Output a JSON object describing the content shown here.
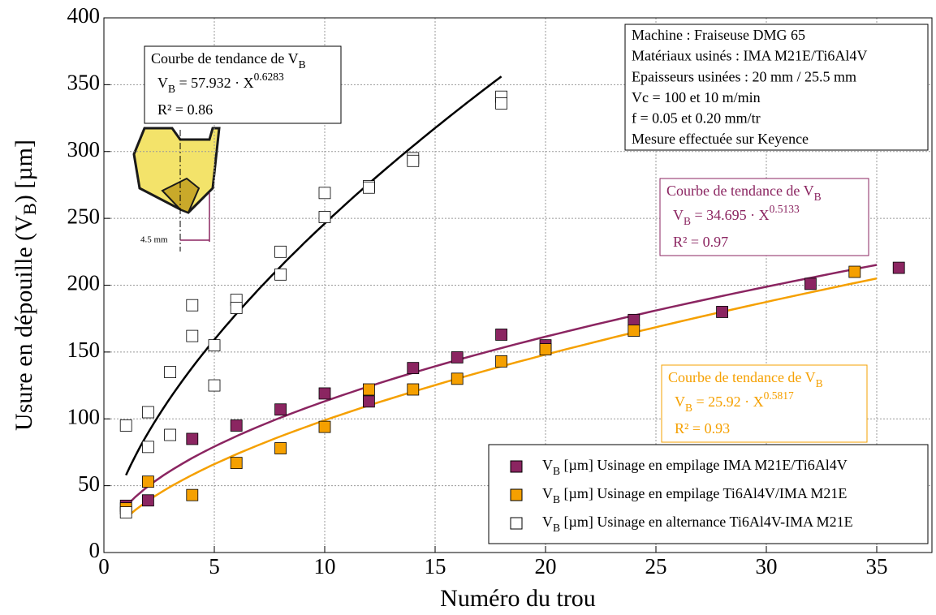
{
  "chart_data": {
    "type": "scatter",
    "xlabel": "Numéro du trou",
    "ylabel": [
      "Usure en dépouille (V",
      "B",
      ") [µm]"
    ],
    "xlim": [
      0,
      37.5
    ],
    "ylim": [
      0,
      400
    ],
    "xticks": [
      0,
      5,
      10,
      15,
      20,
      25,
      30,
      35
    ],
    "yticks": [
      0,
      50,
      100,
      150,
      200,
      250,
      300,
      350,
      400
    ],
    "grid": true,
    "legend_position": "lower right",
    "legend_symbol": [
      "V",
      "B"
    ],
    "series": [
      {
        "name": " [µm] Usinage en empilage IMA M21E/Ti6Al4V",
        "color": "#8b2561",
        "filled": true,
        "x": [
          1,
          2,
          4,
          6,
          8,
          10,
          12,
          14,
          16,
          18,
          20,
          24,
          28,
          32,
          36
        ],
        "values": [
          35,
          39,
          85,
          95,
          107,
          119,
          113,
          138,
          146,
          163,
          155,
          174,
          180,
          201,
          213
        ]
      },
      {
        "name": " [µm] Usinage en empilage Ti6Al4V/IMA M21E",
        "color": "#f5a000",
        "filled": true,
        "x": [
          1,
          2,
          4,
          6,
          8,
          10,
          12,
          14,
          16,
          18,
          20,
          24,
          34
        ],
        "values": [
          33,
          53,
          43,
          67,
          78,
          94,
          122,
          122,
          130,
          143,
          152,
          166,
          210
        ]
      },
      {
        "name": " [µm] Usinage en alternance Ti6Al4V-IMA M21E",
        "color": "#000000",
        "filled": false,
        "x": [
          1,
          1,
          2,
          2,
          3,
          3,
          4,
          4,
          5,
          5,
          6,
          6,
          8,
          8,
          10,
          10,
          12,
          12,
          14,
          14,
          18,
          18
        ],
        "values": [
          95,
          30,
          105,
          79,
          135,
          88,
          185,
          162,
          155,
          125,
          189,
          183,
          225,
          208,
          269,
          251,
          274,
          273,
          295,
          293,
          341,
          336
        ]
      }
    ],
    "trendlines": [
      {
        "color": "#000000",
        "xrange": [
          1,
          18
        ],
        "title": [
          "Courbe de tendance de V",
          "B"
        ],
        "eq": [
          "V",
          "B",
          " = ",
          " · X"
        ],
        "coefficient": 57.932,
        "exponent": 0.6283,
        "r2_label": "R² = ",
        "r2": 0.86
      },
      {
        "color": "#8b2561",
        "xrange": [
          1,
          35
        ],
        "title": [
          "Courbe de tendance de V",
          "B"
        ],
        "eq": [
          "V",
          "B",
          " = ",
          " · X"
        ],
        "coefficient": 34.695,
        "exponent": 0.5133,
        "r2_label": "R² = ",
        "r2": 0.97
      },
      {
        "color": "#f5a000",
        "xrange": [
          1,
          35
        ],
        "title": [
          "Courbe de tendance de V",
          "B"
        ],
        "eq": [
          "V",
          "B",
          " = ",
          " · X"
        ],
        "coefficient": 25.92,
        "exponent": 0.5817,
        "r2_label": "R² = ",
        "r2": 0.93
      }
    ],
    "info": [
      "Machine : Fraiseuse DMG 65",
      "Matériaux usinés : IMA M21E/Ti6Al4V",
      "Epaisseurs usinées : 20 mm / 25.5 mm",
      "Vc = 100 et 10 m/min",
      "f  = 0.05 et 0.20 mm/tr",
      "Mesure effectuée sur Keyence"
    ],
    "tool_dimension": "4.5 mm"
  }
}
